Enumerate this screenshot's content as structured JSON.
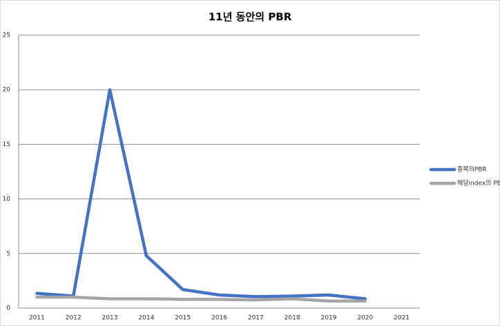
{
  "chart_data": {
    "type": "line",
    "title": "11년 동안의 PBR",
    "categories": [
      "2011",
      "2012",
      "2013",
      "2014",
      "2015",
      "2016",
      "2017",
      "2018",
      "2019",
      "2020",
      "2021"
    ],
    "series": [
      {
        "name": "종목의PBR",
        "color": "#4472c4",
        "values": [
          1.35,
          1.1,
          20,
          4.8,
          1.7,
          1.2,
          1.05,
          1.1,
          1.2,
          0.85,
          null
        ]
      },
      {
        "name": "해당index의 PBR",
        "color": "#a5a5a5",
        "values": [
          1.0,
          1.0,
          0.85,
          0.85,
          0.8,
          0.8,
          0.75,
          0.85,
          0.65,
          0.65,
          null
        ]
      }
    ],
    "ylim": [
      0,
      25
    ],
    "yticks": [
      0,
      5,
      10,
      15,
      20,
      25
    ],
    "grid": true,
    "legend": "right"
  }
}
